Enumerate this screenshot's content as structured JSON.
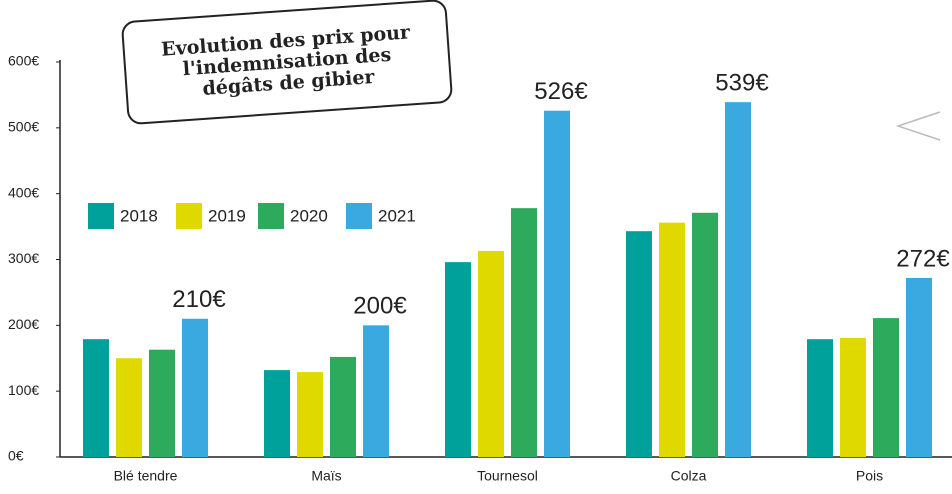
{
  "chart_data": {
    "type": "bar",
    "title": "Evolution des prix pour l'indemnisation des dégâts de gibier",
    "categories": [
      "Blé tendre",
      "Maïs",
      "Tournesol",
      "Colza",
      "Pois"
    ],
    "series": [
      {
        "name": "2018",
        "color": "#00a19a",
        "values": [
          179,
          132,
          296,
          343,
          179
        ]
      },
      {
        "name": "2019",
        "color": "#e0d900",
        "values": [
          150,
          129,
          313,
          356,
          181
        ]
      },
      {
        "name": "2020",
        "color": "#2eaa5c",
        "values": [
          163,
          152,
          378,
          371,
          211
        ]
      },
      {
        "name": "2021",
        "color": "#3aa9e0",
        "values": [
          210,
          200,
          526,
          539,
          272
        ],
        "value_labels": [
          "210€",
          "200€",
          "526€",
          "539€",
          "272€"
        ]
      }
    ],
    "ylim": [
      0,
      600
    ],
    "yticks": [
      {
        "value": 0,
        "label": "0€"
      },
      {
        "value": 100,
        "label": "100€"
      },
      {
        "value": 200,
        "label": "200€"
      },
      {
        "value": 300,
        "label": "300€"
      },
      {
        "value": 400,
        "label": "400€"
      },
      {
        "value": 500,
        "label": "500€"
      },
      {
        "value": 600,
        "label": "600€"
      }
    ],
    "grid": false
  }
}
